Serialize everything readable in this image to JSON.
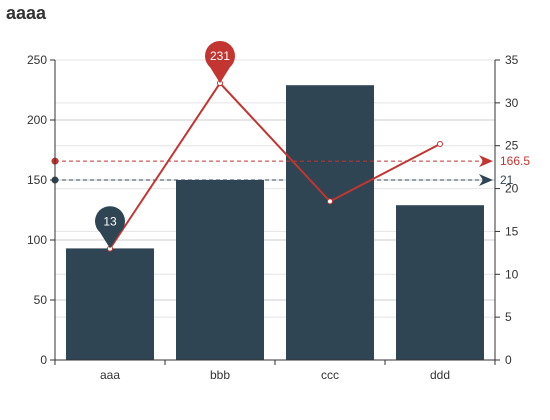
{
  "chart_data": {
    "type": "bar",
    "title": "aaaa",
    "categories": [
      "aaa",
      "bbb",
      "ccc",
      "ddd"
    ],
    "series": [
      {
        "type": "bar",
        "axis": "left",
        "values": [
          93,
          150,
          229,
          129
        ],
        "color": "#2f4554"
      },
      {
        "type": "line",
        "axis": "right",
        "values": [
          13,
          32.3,
          18.5,
          25.2
        ],
        "color": "#c23531"
      }
    ],
    "y_left": {
      "min": 0,
      "max": 250,
      "interval": 50,
      "ticks": [
        "0",
        "50",
        "100",
        "150",
        "200",
        "250"
      ]
    },
    "y_right": {
      "min": 0,
      "max": 35,
      "interval": 5,
      "ticks": [
        "0",
        "5",
        "10",
        "15",
        "20",
        "25",
        "30",
        "35"
      ]
    },
    "mark_points": [
      {
        "series": 0,
        "category": "aaa",
        "value": 93,
        "label": "13",
        "color": "#2f4554"
      },
      {
        "series": 1,
        "category": "bbb",
        "value": 32.3,
        "label": "231",
        "color": "#c23531"
      }
    ],
    "mark_lines": [
      {
        "series": 0,
        "axis": "left",
        "value": 150,
        "label": "21",
        "color": "#2f4554"
      },
      {
        "series": 1,
        "axis": "right",
        "value": 23.2,
        "label": "166.5",
        "color": "#c23531"
      }
    ],
    "grid": true
  }
}
